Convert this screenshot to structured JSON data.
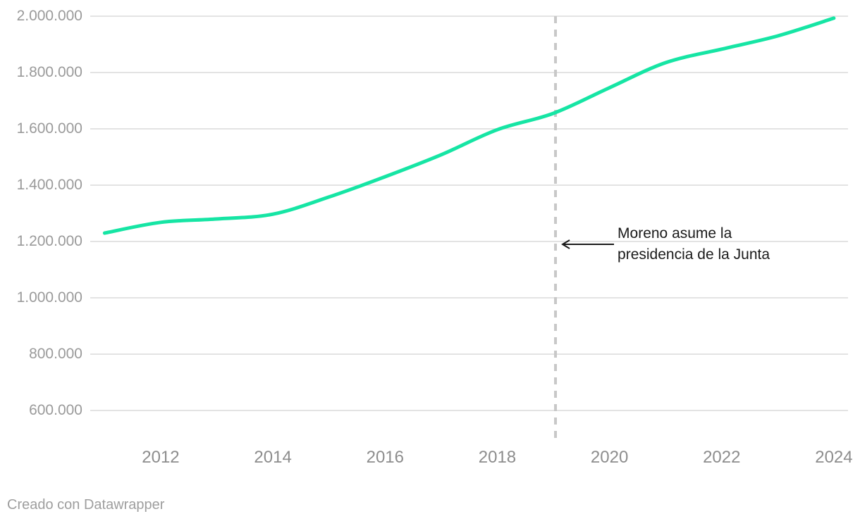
{
  "footer": {
    "credit": "Creado con Datawrapper"
  },
  "colors": {
    "line": "#16e5a4",
    "grid": "#e3e3e3",
    "y_label": "#9a9a9a",
    "x_label": "#8d8d8d",
    "dashed_line": "#c8c8c8",
    "annotation_text": "#1a1a1a",
    "arrow": "#1a1a1a",
    "background": "#ffffff"
  },
  "chart_data": {
    "type": "line",
    "title": "",
    "xlabel": "",
    "ylabel": "",
    "xlim": [
      2011,
      2024
    ],
    "ylim": [
      600000,
      2000000
    ],
    "grid": "horizontal",
    "legend": "none",
    "x": [
      2011,
      2012,
      2013,
      2014,
      2015,
      2016,
      2017,
      2018,
      2019,
      2020,
      2021,
      2022,
      2023,
      2024
    ],
    "values": [
      1230000,
      1268000,
      1280000,
      1297000,
      1358000,
      1430000,
      1508000,
      1597000,
      1655000,
      1746000,
      1835000,
      1883000,
      1930000,
      1993000
    ],
    "y_ticks": [
      {
        "value": 600000,
        "label": "600.000"
      },
      {
        "value": 800000,
        "label": "800.000"
      },
      {
        "value": 1000000,
        "label": "1.000.000"
      },
      {
        "value": 1200000,
        "label": "1.200.000"
      },
      {
        "value": 1400000,
        "label": "1.400.000"
      },
      {
        "value": 1600000,
        "label": "1.600.000"
      },
      {
        "value": 1800000,
        "label": "1.800.000"
      },
      {
        "value": 2000000,
        "label": "2.000.000"
      }
    ],
    "x_ticks": [
      {
        "value": 2012,
        "label": "2012"
      },
      {
        "value": 2014,
        "label": "2014"
      },
      {
        "value": 2016,
        "label": "2016"
      },
      {
        "value": 2018,
        "label": "2018"
      },
      {
        "value": 2020,
        "label": "2020"
      },
      {
        "value": 2022,
        "label": "2022"
      },
      {
        "value": 2024,
        "label": "2024"
      }
    ],
    "annotation": {
      "line1": "Moreno asume la",
      "line2": "presidencia de la Junta",
      "x_year": 2019,
      "arrow_y_value": 1190000
    }
  }
}
